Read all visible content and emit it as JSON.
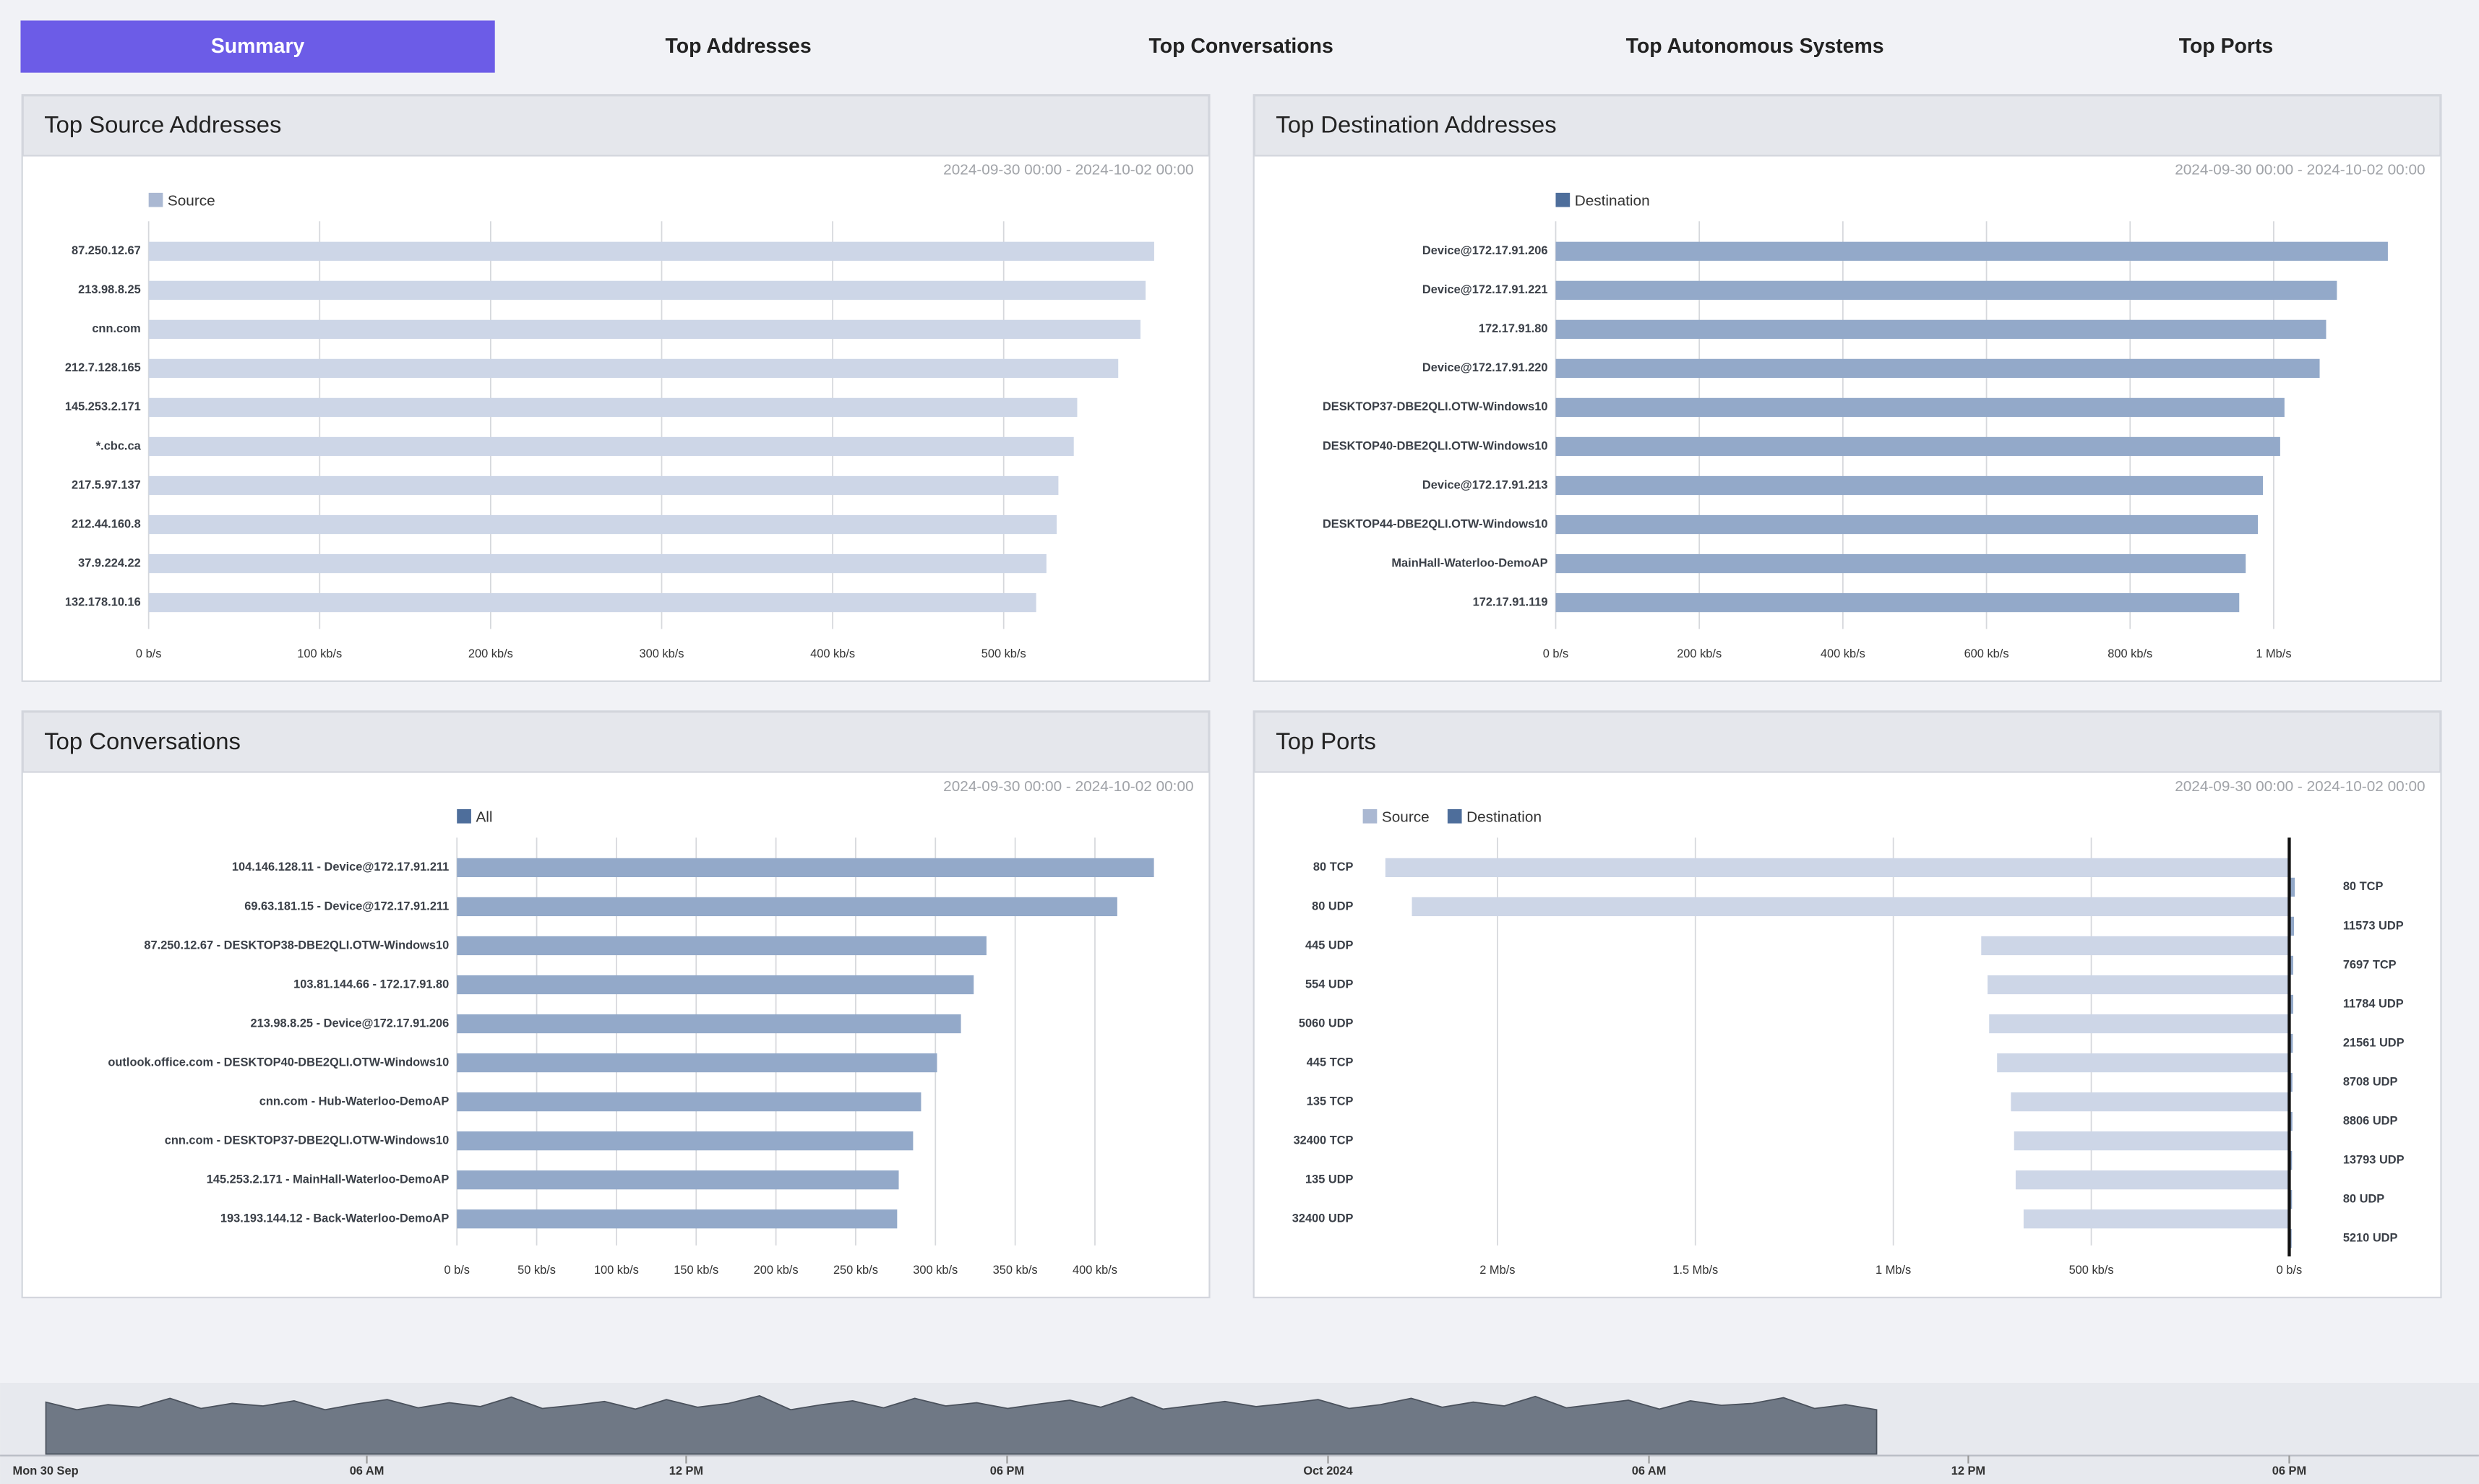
{
  "tabs": [
    "Summary",
    "Top Addresses",
    "Top Conversations",
    "Top Autonomous Systems",
    "Top Ports"
  ],
  "chart_data": [
    {
      "type": "bar",
      "title": "Top Source Addresses",
      "subtitle": "2024-09-30 00:00 - 2024-10-02 00:00",
      "categories": [
        "87.250.12.67",
        "213.98.8.25",
        "cnn.com",
        "212.7.128.165",
        "145.253.2.171",
        "*.cbc.ca",
        "217.5.97.137",
        "212.44.160.8",
        "37.9.224.22",
        "132.178.10.16"
      ],
      "series": [
        {
          "name": "Source",
          "color": "#cdd6e7",
          "legend_color": "#aab8d2",
          "values": [
            588,
            583,
            580,
            567,
            543,
            541,
            532,
            531,
            525,
            519
          ]
        }
      ],
      "xlim": [
        0,
        600
      ],
      "xticks": [
        {
          "value": 0,
          "label": "0 b/s"
        },
        {
          "value": 100,
          "label": "100 kb/s"
        },
        {
          "value": 200,
          "label": "200 kb/s"
        },
        {
          "value": 300,
          "label": "300 kb/s"
        },
        {
          "value": 400,
          "label": "400 kb/s"
        },
        {
          "value": 500,
          "label": "500 kb/s"
        }
      ]
    },
    {
      "type": "bar",
      "title": "Top Destination Addresses",
      "subtitle": "2024-09-30 00:00 - 2024-10-02 00:00",
      "categories": [
        "Device@172.17.91.206",
        "Device@172.17.91.221",
        "172.17.91.80",
        "Device@172.17.91.220",
        "DESKTOP37-DBE2QLI.OTW-Windows10",
        "DESKTOP40-DBE2QLI.OTW-Windows10",
        "Device@172.17.91.213",
        "DESKTOP44-DBE2QLI.OTW-Windows10",
        "MainHall-Waterloo-DemoAP",
        "172.17.91.119"
      ],
      "series": [
        {
          "name": "Destination",
          "color": "#93a9c9",
          "legend_color": "#4e6e9b",
          "values": [
            1159,
            1088,
            1073,
            1064,
            1015,
            1009,
            985,
            978,
            961,
            952
          ]
        }
      ],
      "xlim": [
        0,
        1200
      ],
      "xticks": [
        {
          "value": 0,
          "label": "0 b/s"
        },
        {
          "value": 200,
          "label": "200 kb/s"
        },
        {
          "value": 400,
          "label": "400 kb/s"
        },
        {
          "value": 600,
          "label": "600 kb/s"
        },
        {
          "value": 800,
          "label": "800 kb/s"
        },
        {
          "value": 1000,
          "label": "1 Mb/s"
        }
      ]
    },
    {
      "type": "bar",
      "title": "Top Conversations",
      "subtitle": "2024-09-30 00:00 - 2024-10-02 00:00",
      "categories": [
        "104.146.128.11 - Device@172.17.91.211",
        "69.63.181.15 - Device@172.17.91.211",
        "87.250.12.67 - DESKTOP38-DBE2QLI.OTW-Windows10",
        "103.81.144.66 - 172.17.91.80",
        "213.98.8.25 - Device@172.17.91.206",
        "outlook.office.com - DESKTOP40-DBE2QLI.OTW-Windows10",
        "cnn.com - Hub-Waterloo-DemoAP",
        "cnn.com - DESKTOP37-DBE2QLI.OTW-Windows10",
        "145.253.2.171 - MainHall-Waterloo-DemoAP",
        "193.193.144.12 - Back-Waterloo-DemoAP"
      ],
      "series": [
        {
          "name": "All",
          "color": "#93a9c9",
          "legend_color": "#4e6e9b",
          "values": [
            437,
            414,
            332,
            324,
            316,
            301,
            291,
            286,
            277,
            276
          ]
        }
      ],
      "xlim": [
        0,
        450
      ],
      "xticks": [
        {
          "value": 0,
          "label": "0 b/s"
        },
        {
          "value": 50,
          "label": "50 kb/s"
        },
        {
          "value": 100,
          "label": "100 kb/s"
        },
        {
          "value": 150,
          "label": "150 kb/s"
        },
        {
          "value": 200,
          "label": "200 kb/s"
        },
        {
          "value": 250,
          "label": "250 kb/s"
        },
        {
          "value": 300,
          "label": "300 kb/s"
        },
        {
          "value": 350,
          "label": "350 kb/s"
        },
        {
          "value": 400,
          "label": "400 kb/s"
        }
      ]
    },
    {
      "type": "butterfly",
      "title": "Top Ports",
      "subtitle": "2024-09-30 00:00 - 2024-10-02 00:00",
      "series": [
        {
          "name": "Source",
          "color": "#cdd6e7",
          "legend_color": "#aab8d2",
          "categories": [
            "80 TCP",
            "80 UDP",
            "445 UDP",
            "554 UDP",
            "5060 UDP",
            "445 TCP",
            "135 TCP",
            "32400 TCP",
            "135 UDP",
            "32400 UDP"
          ],
          "values": [
            2283,
            2216,
            778,
            762,
            758,
            738,
            703,
            695,
            691,
            671
          ]
        },
        {
          "name": "Destination",
          "color": "#93a9c9",
          "legend_color": "#4e6e9b",
          "categories": [
            "80 TCP",
            "11573 UDP",
            "7697 TCP",
            "11784 UDP",
            "21561 UDP",
            "8708 UDP",
            "8806 UDP",
            "13793 UDP",
            "80 UDP",
            "5210 UDP"
          ],
          "values": [
            14,
            12,
            10,
            10,
            9,
            8,
            8,
            7,
            7,
            6
          ]
        }
      ],
      "xlim": [
        0,
        2340
      ],
      "xticks": [
        {
          "value": 0,
          "label": "0 b/s"
        },
        {
          "value": 500,
          "label": "500 kb/s"
        },
        {
          "value": 1000,
          "label": "1 Mb/s"
        },
        {
          "value": 1500,
          "label": "1.5 Mb/s"
        },
        {
          "value": 2000,
          "label": "2 Mb/s"
        }
      ]
    }
  ],
  "timeline": {
    "labels": [
      "Mon 30 Sep",
      "06 AM",
      "12 PM",
      "06 PM",
      "Oct 2024",
      "06 AM",
      "12 PM",
      "06 PM"
    ],
    "values": [
      82,
      70,
      78,
      74,
      88,
      72,
      80,
      76,
      84,
      70,
      79,
      86,
      73,
      81,
      75,
      90,
      72,
      77,
      83,
      71,
      86,
      74,
      80,
      92,
      70,
      78,
      84,
      73,
      88,
      76,
      81,
      72,
      79,
      85,
      74,
      90,
      71,
      77,
      83,
      75,
      80,
      86,
      72,
      78,
      88,
      74,
      82,
      76,
      91,
      73,
      79,
      85,
      71,
      84,
      77,
      80,
      89,
      72,
      78,
      70
    ]
  }
}
